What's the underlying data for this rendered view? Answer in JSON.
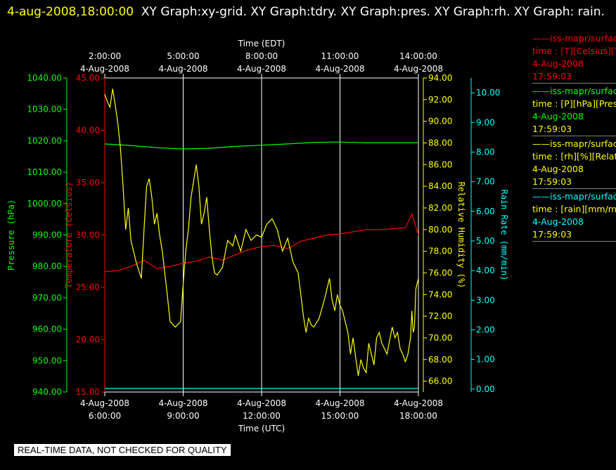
{
  "header": {
    "timestamp": "4-aug-2008,18:00:00",
    "text": "XY Graph:xy-grid.  XY Graph:tdry.  XY Graph:pres.  XY Graph:rh.  XY Graph: rain."
  },
  "legend": [
    {
      "line1": "——iss-mapr/surface",
      "line2": "time : [T][Celsius][Temperature]",
      "line3": "4-Aug-2008",
      "line4": "17:59:03",
      "color": "#ff0000"
    },
    {
      "line1": "——iss-mapr/surface",
      "line2": "time : [P][hPa][Pressure]",
      "line3": "4-Aug-2008",
      "line4": "17:59:03",
      "color": "#00ff00"
    },
    {
      "line1": "——iss-mapr/surface",
      "line2": "time : [rh][%][Relative Humidity]",
      "line3": "4-Aug-2008",
      "line4": "17:59:03",
      "color": "#ffff00"
    },
    {
      "line1": "——iss-mapr/surface",
      "line2": "time : [rain][mm/min][Rain Rate]",
      "line3": "4-Aug-2008",
      "line4": "17:59:03",
      "color": "#00ffff"
    }
  ],
  "banner": "REAL-TIME DATA, NOT CHECKED FOR QUALITY",
  "chart_data": {
    "type": "line",
    "top_axis": {
      "label": "Time (EDT)",
      "ticks": [
        [
          "2:00:00",
          "4-Aug-2008"
        ],
        [
          "5:00:00",
          "4-Aug-2008"
        ],
        [
          "8:00:00",
          "4-Aug-2008"
        ],
        [
          "11:00:00",
          "4-Aug-2008"
        ],
        [
          "14:00:00",
          "4-Aug-2008"
        ]
      ]
    },
    "bottom_axis": {
      "label": "Time (UTC)",
      "ticks": [
        [
          "4-Aug-2008",
          "6:00:00"
        ],
        [
          "4-Aug-2008",
          "9:00:00"
        ],
        [
          "4-Aug-2008",
          "12:00:00"
        ],
        [
          "4-Aug-2008",
          "15:00:00"
        ],
        [
          "4-Aug-2008",
          "18:00:00"
        ]
      ]
    },
    "xlim": [
      6,
      18
    ],
    "axes": {
      "pressure": {
        "label": "Pressure (hPa)",
        "ylim": [
          940,
          1040
        ],
        "ticks": [
          "1040.00",
          "1030.00",
          "1020.00",
          "1010.00",
          "1000.00",
          "990.00",
          "980.00",
          "970.00",
          "960.00",
          "950.00",
          "940.00"
        ],
        "color": "#00ff00"
      },
      "temperature": {
        "label": "Temperature (Celsius)",
        "ylim": [
          15,
          45
        ],
        "ticks": [
          "45.00",
          "40.00",
          "35.00",
          "30.00",
          "25.00",
          "20.00",
          "15.00"
        ],
        "color": "#ff0000"
      },
      "humidity": {
        "label": "Relative Humidity (%)",
        "ylim": [
          65,
          94
        ],
        "ticks": [
          "94.00",
          "92.00",
          "90.00",
          "88.00",
          "86.00",
          "84.00",
          "82.00",
          "80.00",
          "78.00",
          "76.00",
          "74.00",
          "72.00",
          "70.00",
          "68.00",
          "66.00"
        ],
        "color": "#ffff00"
      },
      "rain": {
        "label": "Rain Rate (mm/min)",
        "ylim": [
          -0.1,
          10.5
        ],
        "ticks": [
          "10.00",
          "9.00",
          "8.00",
          "7.00",
          "6.00",
          "5.00",
          "4.00",
          "3.00",
          "2.00",
          "1.00",
          "0.00"
        ],
        "color": "#00ffff"
      }
    },
    "series": [
      {
        "name": "Temperature",
        "axis": "temperature",
        "color": "#ff0000",
        "points": [
          [
            6,
            26.5
          ],
          [
            6.5,
            26.6
          ],
          [
            7,
            27
          ],
          [
            7.5,
            27.6
          ],
          [
            8,
            26.8
          ],
          [
            8.5,
            27
          ],
          [
            9,
            27.3
          ],
          [
            9.5,
            27.5
          ],
          [
            10,
            27.9
          ],
          [
            10.5,
            27.6
          ],
          [
            11,
            28.1
          ],
          [
            11.5,
            28.6
          ],
          [
            12,
            28.9
          ],
          [
            12.5,
            29
          ],
          [
            13,
            28.7
          ],
          [
            13.5,
            29.4
          ],
          [
            14,
            29.7
          ],
          [
            14.5,
            30
          ],
          [
            15,
            30.1
          ],
          [
            15.5,
            30.3
          ],
          [
            16,
            30.5
          ],
          [
            16.5,
            30.5
          ],
          [
            17,
            30.6
          ],
          [
            17.5,
            30.7
          ],
          [
            17.6,
            31.2
          ],
          [
            17.75,
            32
          ],
          [
            17.9,
            30.8
          ],
          [
            18,
            30
          ]
        ]
      },
      {
        "name": "Pressure",
        "axis": "pressure",
        "color": "#00ff00",
        "points": [
          [
            6,
            1019
          ],
          [
            7,
            1018.5
          ],
          [
            8,
            1017.8
          ],
          [
            9,
            1017.4
          ],
          [
            10,
            1017.6
          ],
          [
            11,
            1018.2
          ],
          [
            12,
            1018.6
          ],
          [
            13,
            1019
          ],
          [
            14,
            1019.5
          ],
          [
            15,
            1019.6
          ],
          [
            16,
            1019.4
          ],
          [
            17,
            1019.4
          ],
          [
            18,
            1019.4
          ]
        ]
      },
      {
        "name": "Relative Humidity",
        "axis": "humidity",
        "color": "#ffff00",
        "points": [
          [
            6,
            92.5
          ],
          [
            6.1,
            91.8
          ],
          [
            6.2,
            91.3
          ],
          [
            6.3,
            93
          ],
          [
            6.4,
            91.5
          ],
          [
            6.5,
            89.8
          ],
          [
            6.6,
            87.5
          ],
          [
            6.7,
            84
          ],
          [
            6.8,
            80
          ],
          [
            6.85,
            81
          ],
          [
            6.9,
            82
          ],
          [
            7,
            79
          ],
          [
            7.2,
            77
          ],
          [
            7.4,
            75.5
          ],
          [
            7.5,
            80
          ],
          [
            7.6,
            84
          ],
          [
            7.7,
            84.7
          ],
          [
            7.8,
            83
          ],
          [
            7.9,
            80.5
          ],
          [
            8,
            81.5
          ],
          [
            8.1,
            79.5
          ],
          [
            8.2,
            78
          ],
          [
            8.4,
            73.8
          ],
          [
            8.5,
            71.5
          ],
          [
            8.7,
            71
          ],
          [
            8.9,
            71.5
          ],
          [
            9,
            75
          ],
          [
            9.1,
            78
          ],
          [
            9.2,
            80
          ],
          [
            9.3,
            83
          ],
          [
            9.4,
            84.5
          ],
          [
            9.5,
            86
          ],
          [
            9.6,
            84
          ],
          [
            9.7,
            80.5
          ],
          [
            9.8,
            81.5
          ],
          [
            9.9,
            83
          ],
          [
            10,
            80
          ],
          [
            10.1,
            77.5
          ],
          [
            10.2,
            76
          ],
          [
            10.3,
            75.8
          ],
          [
            10.5,
            76.5
          ],
          [
            10.7,
            79
          ],
          [
            10.9,
            78.5
          ],
          [
            11,
            79.5
          ],
          [
            11.2,
            78
          ],
          [
            11.4,
            80
          ],
          [
            11.6,
            79
          ],
          [
            11.8,
            79.5
          ],
          [
            12,
            79.3
          ],
          [
            12.2,
            80.5
          ],
          [
            12.4,
            81
          ],
          [
            12.6,
            80
          ],
          [
            12.8,
            78
          ],
          [
            13,
            79.2
          ],
          [
            13.2,
            77
          ],
          [
            13.4,
            76
          ],
          [
            13.6,
            72
          ],
          [
            13.7,
            70.5
          ],
          [
            13.8,
            71.8
          ],
          [
            13.9,
            71.2
          ],
          [
            14,
            71
          ],
          [
            14.2,
            71.8
          ],
          [
            14.4,
            73.5
          ],
          [
            14.5,
            74.5
          ],
          [
            14.6,
            75.5
          ],
          [
            14.7,
            73.5
          ],
          [
            14.8,
            72.5
          ],
          [
            14.9,
            74
          ],
          [
            15,
            73
          ],
          [
            15.1,
            72.5
          ],
          [
            15.2,
            71.5
          ],
          [
            15.3,
            70.5
          ],
          [
            15.4,
            68.5
          ],
          [
            15.5,
            70
          ],
          [
            15.6,
            68.2
          ],
          [
            15.7,
            66.5
          ],
          [
            15.8,
            68
          ],
          [
            15.9,
            67.2
          ],
          [
            16,
            66.8
          ],
          [
            16.1,
            69.5
          ],
          [
            16.2,
            68.5
          ],
          [
            16.3,
            67.5
          ],
          [
            16.4,
            70
          ],
          [
            16.5,
            70.5
          ],
          [
            16.6,
            69.5
          ],
          [
            16.7,
            69
          ],
          [
            16.8,
            68.5
          ],
          [
            16.9,
            69.8
          ],
          [
            17,
            71
          ],
          [
            17.1,
            70
          ],
          [
            17.2,
            70.5
          ],
          [
            17.3,
            69
          ],
          [
            17.4,
            68.5
          ],
          [
            17.5,
            67.8
          ],
          [
            17.6,
            68.5
          ],
          [
            17.7,
            70
          ],
          [
            17.75,
            72.5
          ],
          [
            17.8,
            70.5
          ],
          [
            17.85,
            71
          ],
          [
            17.9,
            74.5
          ],
          [
            18,
            75.5
          ]
        ]
      },
      {
        "name": "Rain Rate",
        "axis": "rain",
        "color": "#00ffff",
        "points": [
          [
            6,
            0.02
          ],
          [
            18,
            0.02
          ]
        ]
      }
    ],
    "grid": true
  }
}
